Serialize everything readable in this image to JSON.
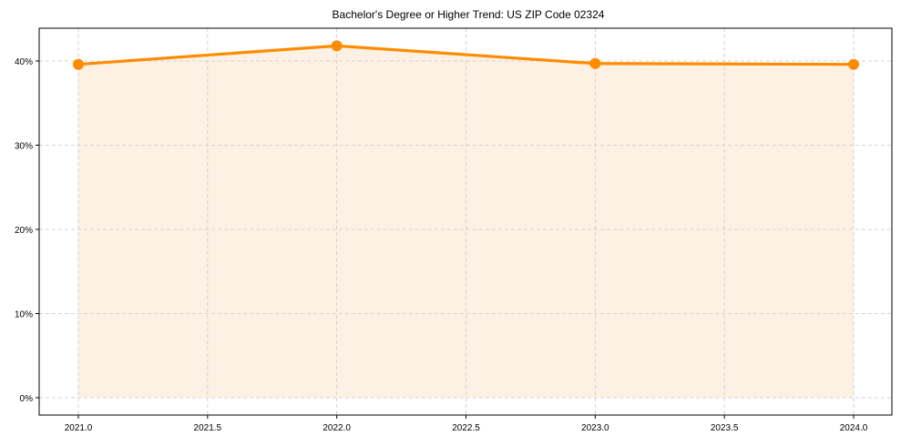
{
  "chart_data": {
    "type": "line",
    "title": "Bachelor's Degree or Higher Trend: US ZIP Code 02324",
    "xlabel": "",
    "ylabel": "",
    "x": [
      2021,
      2022,
      2023,
      2024
    ],
    "series": [
      {
        "name": "Bachelor's Degree or Higher",
        "values": [
          39.6,
          41.8,
          39.7,
          39.6
        ],
        "color": "#ff8c00",
        "fill": "#fdf1e4"
      }
    ],
    "xlim": [
      2020.85,
      2024.15
    ],
    "ylim": [
      -2.1,
      44.0
    ],
    "xticks": [
      2021.0,
      2021.5,
      2022.0,
      2022.5,
      2023.0,
      2023.5,
      2024.0
    ],
    "xtick_labels": [
      "2021.0",
      "2021.5",
      "2022.0",
      "2022.5",
      "2023.0",
      "2023.5",
      "2024.0"
    ],
    "yticks": [
      0,
      10,
      20,
      30,
      40
    ],
    "ytick_labels": [
      "0%",
      "10%",
      "20%",
      "30%",
      "40%"
    ],
    "grid": true,
    "grid_style": "dashed",
    "legend": "none",
    "area_fill": true
  }
}
